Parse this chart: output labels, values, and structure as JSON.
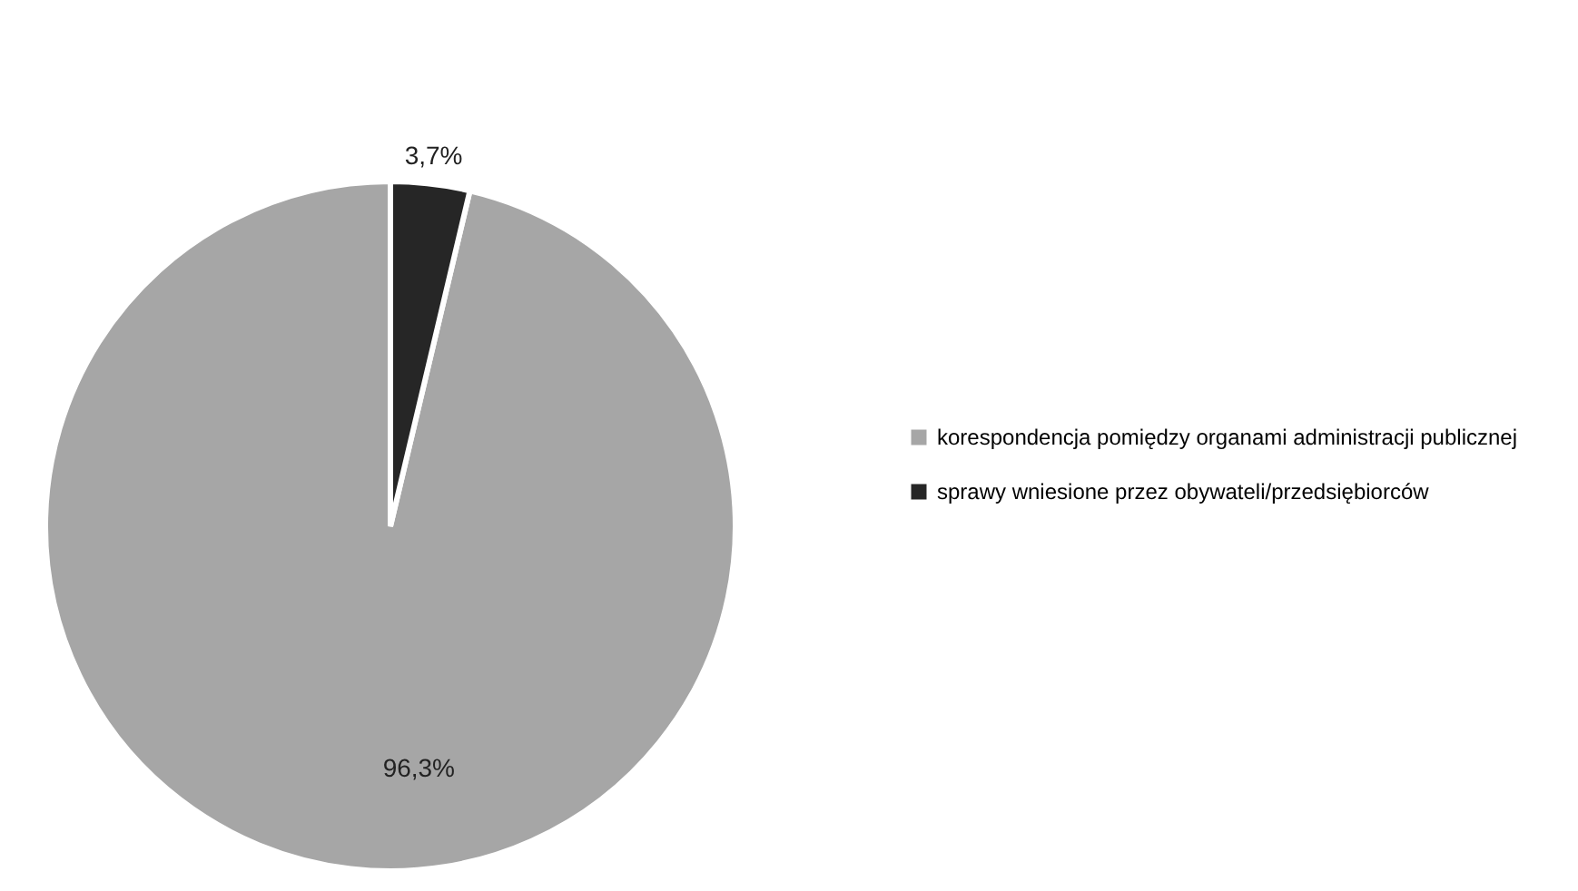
{
  "chart_data": {
    "type": "pie",
    "categories": [
      "korespondencja pomiędzy organami administracji publicznej",
      "sprawy wniesione przez obywateli/przedsiębiorców"
    ],
    "values": [
      96.3,
      3.7
    ],
    "colors": [
      "#a6a6a6",
      "#262626"
    ],
    "value_labels": [
      "96,3%",
      "3,7%"
    ],
    "legend": "right"
  }
}
